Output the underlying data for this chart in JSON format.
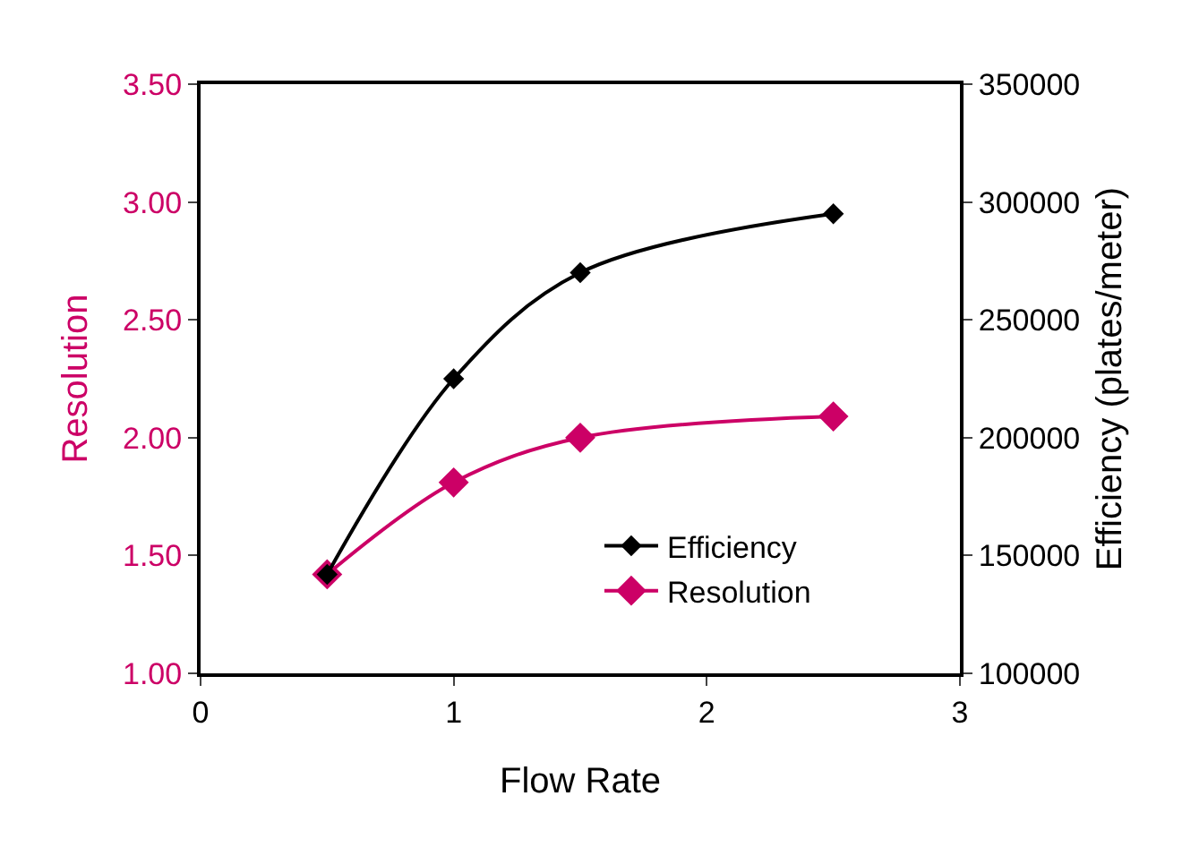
{
  "chart_data": {
    "type": "line",
    "xlabel": "Flow Rate",
    "ylabel": "Resolution",
    "y2label": "Efficiency (plates/meter)",
    "xlim": [
      0,
      3
    ],
    "xticks": [
      0,
      1,
      2,
      3
    ],
    "ylim": [
      1.0,
      3.5
    ],
    "yticks": [
      {
        "value": 1.0,
        "label": "1.00"
      },
      {
        "value": 1.5,
        "label": "1.50"
      },
      {
        "value": 2.0,
        "label": "2.00"
      },
      {
        "value": 2.5,
        "label": "2.50"
      },
      {
        "value": 3.0,
        "label": "3.00"
      },
      {
        "value": 3.5,
        "label": "3.50"
      }
    ],
    "y2lim": [
      100000,
      350000
    ],
    "y2ticks": [
      100000,
      150000,
      200000,
      250000,
      300000,
      350000
    ],
    "x": [
      0.5,
      1,
      1.5,
      2.5
    ],
    "legend": "bottom right",
    "marker": "diamond",
    "line_style": "solid",
    "series": [
      {
        "name": "Efficiency",
        "color": "#000000",
        "axis": "y2",
        "values": [
          142000,
          225000,
          270000,
          295000
        ]
      },
      {
        "name": "Resolution",
        "color": "#cc0066",
        "values": [
          1.42,
          1.81,
          2.0,
          2.09
        ]
      }
    ]
  }
}
